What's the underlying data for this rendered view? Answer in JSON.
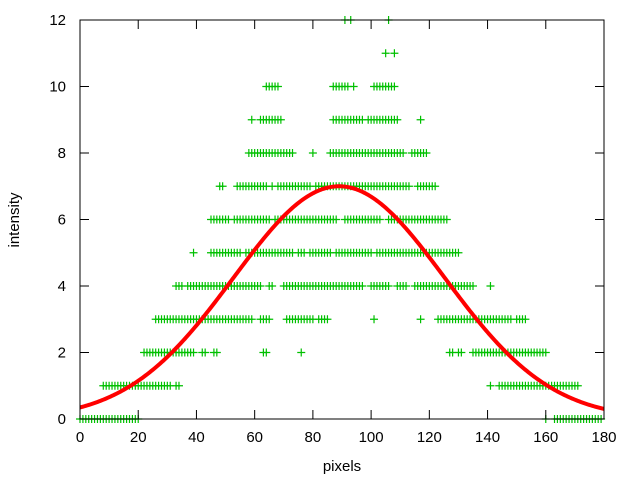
{
  "chart_data": {
    "type": "scatter",
    "title": "",
    "xlabel": "pixels",
    "ylabel": "intensity",
    "xlim": [
      0,
      180
    ],
    "ylim": [
      0,
      12
    ],
    "xticks": [
      0,
      20,
      40,
      60,
      80,
      100,
      120,
      140,
      160,
      180
    ],
    "yticks": [
      0,
      2,
      4,
      6,
      8,
      10,
      12
    ],
    "grid": false,
    "legend": "none",
    "series": [
      {
        "kind": "points",
        "marker": "plus",
        "color": "#00c000",
        "note_encoding": "each level lists inclusive integer x ranges",
        "levels": [
          {
            "y": 0,
            "x_ranges": [
              [
                0,
                20
              ],
              [
                160,
                160
              ],
              [
                163,
                179
              ]
            ]
          },
          {
            "y": 1,
            "x_ranges": [
              [
                8,
                31
              ],
              [
                33,
                34
              ],
              [
                141,
                141
              ],
              [
                144,
                171
              ]
            ]
          },
          {
            "y": 2,
            "x_ranges": [
              [
                22,
                39
              ],
              [
                42,
                43
              ],
              [
                46,
                47
              ],
              [
                63,
                64
              ],
              [
                76,
                76
              ],
              [
                127,
                128
              ],
              [
                130,
                131
              ],
              [
                135,
                160
              ]
            ]
          },
          {
            "y": 3,
            "x_ranges": [
              [
                26,
                59
              ],
              [
                62,
                65
              ],
              [
                71,
                80
              ],
              [
                82,
                85
              ],
              [
                101,
                101
              ],
              [
                117,
                117
              ],
              [
                123,
                148
              ],
              [
                150,
                153
              ]
            ]
          },
          {
            "y": 4,
            "x_ranges": [
              [
                33,
                35
              ],
              [
                37,
                62
              ],
              [
                65,
                66
              ],
              [
                70,
                97
              ],
              [
                100,
                106
              ],
              [
                109,
                112
              ],
              [
                115,
                135
              ],
              [
                141,
                141
              ]
            ]
          },
          {
            "y": 5,
            "x_ranges": [
              [
                39,
                39
              ],
              [
                45,
                55
              ],
              [
                57,
                73
              ],
              [
                75,
                77
              ],
              [
                79,
                86
              ],
              [
                88,
                100
              ],
              [
                102,
                130
              ]
            ]
          },
          {
            "y": 6,
            "x_ranges": [
              [
                45,
                51
              ],
              [
                53,
                65
              ],
              [
                67,
                88
              ],
              [
                91,
                103
              ],
              [
                106,
                126
              ]
            ]
          },
          {
            "y": 7,
            "x_ranges": [
              [
                48,
                49
              ],
              [
                54,
                64
              ],
              [
                66,
                66
              ],
              [
                68,
                79
              ],
              [
                81,
                113
              ],
              [
                116,
                122
              ]
            ]
          },
          {
            "y": 8,
            "x_ranges": [
              [
                58,
                73
              ],
              [
                80,
                80
              ],
              [
                86,
                111
              ],
              [
                114,
                119
              ]
            ]
          },
          {
            "y": 9,
            "x_ranges": [
              [
                59,
                59
              ],
              [
                62,
                69
              ],
              [
                87,
                97
              ],
              [
                99,
                109
              ],
              [
                117,
                117
              ]
            ]
          },
          {
            "y": 10,
            "x_ranges": [
              [
                64,
                68
              ],
              [
                87,
                92
              ],
              [
                94,
                94
              ],
              [
                101,
                108
              ]
            ]
          },
          {
            "y": 11,
            "x_ranges": [
              [
                105,
                105
              ],
              [
                108,
                108
              ]
            ]
          },
          {
            "y": 12,
            "x_ranges": [
              [
                91,
                91
              ],
              [
                93,
                93
              ],
              [
                106,
                106
              ]
            ]
          }
        ]
      },
      {
        "kind": "curve",
        "color": "#ff0000",
        "model": {
          "type": "gaussian",
          "amplitude": 7,
          "mean": 89,
          "sigma": 36.3
        }
      }
    ]
  }
}
